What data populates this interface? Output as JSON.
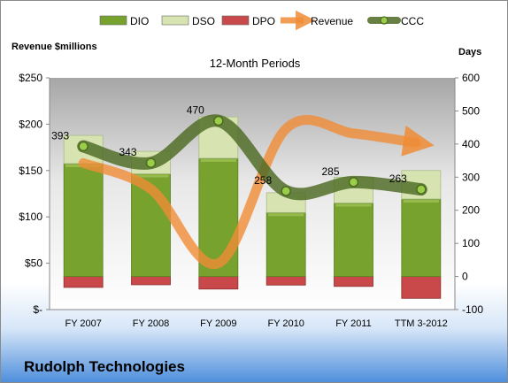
{
  "chart_data": {
    "type": "bar",
    "title": "12-Month Periods",
    "company": "Rudolph Technologies",
    "categories": [
      "FY 2007",
      "FY 2008",
      "FY 2009",
      "FY 2010",
      "FY 2011",
      "TTM 3-2012"
    ],
    "left_axis": {
      "label": "Revenue $millions",
      "ylim": [
        0,
        250
      ],
      "ticks": [
        0,
        50,
        100,
        150,
        200,
        250
      ],
      "tick_labels": [
        "$-",
        "$50",
        "$100",
        "$150",
        "$200",
        "$250"
      ]
    },
    "right_axis": {
      "label": "Days",
      "ylim": [
        -100,
        600
      ],
      "ticks": [
        -100,
        0,
        100,
        200,
        300,
        400,
        500,
        600
      ],
      "tick_labels": [
        "-100",
        "0",
        "100",
        "200",
        "300",
        "400",
        "500",
        "600"
      ]
    },
    "series": [
      {
        "name": "DIO",
        "kind": "stacked-bar-days",
        "color": "#77a22d",
        "values": [
          341,
          310,
          357,
          193,
          222,
          234
        ]
      },
      {
        "name": "DSO",
        "kind": "stacked-bar-days",
        "color": "#d7e4b2",
        "values": [
          85,
          68,
          125,
          60,
          78,
          86
        ]
      },
      {
        "name": "DPO",
        "kind": "stacked-bar-days-negative",
        "color": "#c9494a",
        "values": [
          -33,
          -25,
          -38,
          -26,
          -30,
          -66
        ]
      },
      {
        "name": "Revenue",
        "kind": "line-arrow-left-axis",
        "color": "#f08c36",
        "values": [
          158,
          130,
          50,
          195,
          190,
          180
        ]
      },
      {
        "name": "CCC",
        "kind": "line-right-axis",
        "color": "#4d6a23",
        "values": [
          393,
          343,
          470,
          258,
          285,
          263
        ]
      }
    ],
    "data_labels": {
      "CCC": [
        "393",
        "343",
        "470",
        "258",
        "285",
        "263"
      ]
    },
    "legend": {
      "position": "top",
      "items": [
        "DIO",
        "DSO",
        "DPO",
        "Revenue",
        "CCC"
      ]
    },
    "grid": false
  }
}
